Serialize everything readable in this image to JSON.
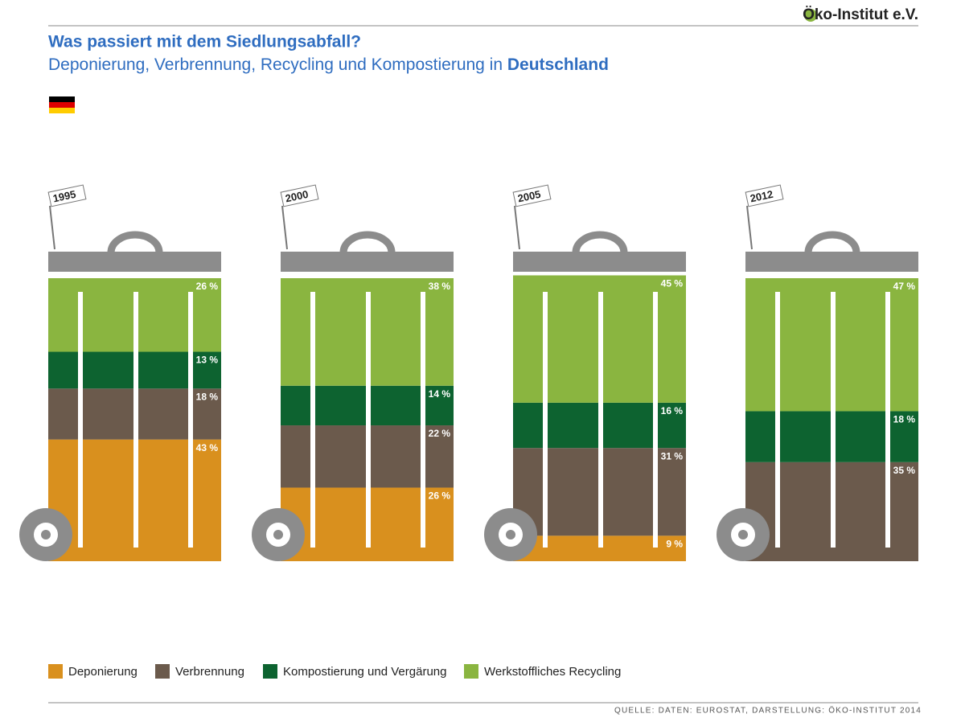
{
  "header": {
    "logo": "Öko-Institut e.V."
  },
  "chart_data": {
    "type": "stacked-bin",
    "title": "Was passiert mit dem Siedlungsabfall?",
    "subtitle": [
      "Deponierung, Verbrennung, Recycling und Kompostierung in ",
      "Deutschland"
    ],
    "categories": [
      "1995",
      "2000",
      "2005",
      "2012"
    ],
    "ylim": [
      0,
      100
    ],
    "series": [
      {
        "name": "Deponierung",
        "color": "#d9901e",
        "values": [
          43,
          26,
          9,
          null
        ],
        "value_labels": [
          "43 %",
          "26 %",
          "9 %",
          null
        ]
      },
      {
        "name": "Verbrennung",
        "color": "#6b5a4c",
        "values": [
          18,
          22,
          31,
          35
        ],
        "value_labels": [
          "18 %",
          "22 %",
          "31 %",
          "35 %"
        ]
      },
      {
        "name": "Kompostierung und Vergärung",
        "color": "#0d6330",
        "values": [
          13,
          14,
          16,
          18
        ],
        "value_labels": [
          "13 %",
          "14 %",
          "16 %",
          "18 %"
        ]
      },
      {
        "name": "Werkstoffliches Recycling",
        "color": "#8ab540",
        "values": [
          26,
          38,
          45,
          47
        ],
        "value_labels": [
          "26 %",
          "38 %",
          "45 %",
          "47 %"
        ]
      }
    ],
    "source": "QUELLE: DATEN: EUROSTAT, DARSTELLUNG: ÖKO-INSTITUT 2014"
  }
}
